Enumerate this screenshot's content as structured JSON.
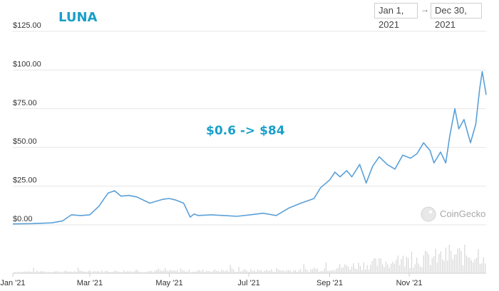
{
  "range": {
    "from": "Jan 1, 2021",
    "to": "Dec 30, 2021"
  },
  "watermark": "CoinGecko",
  "colors": {
    "line": "#5aa0d8",
    "title": "#1a9fc9",
    "grid": "#e6e6e6",
    "volume": "#d9d9d9"
  },
  "chart_data": {
    "type": "line",
    "title": "LUNA",
    "annotation": "$0.6 -> $84",
    "ylim": [
      0,
      125
    ],
    "y_ticks": [
      {
        "value": 0,
        "label": "$0.00"
      },
      {
        "value": 25,
        "label": "$25.00"
      },
      {
        "value": 50,
        "label": "$50.00"
      },
      {
        "value": 75,
        "label": "$75.00"
      },
      {
        "value": 100,
        "label": "$100.00"
      },
      {
        "value": 125,
        "label": "$125.00"
      }
    ],
    "xlim": [
      "2021-01-01",
      "2021-12-30"
    ],
    "x_ticks": [
      {
        "date": "2021-01-01",
        "label": "Jan '21"
      },
      {
        "date": "2021-03-01",
        "label": "Mar '21"
      },
      {
        "date": "2021-05-01",
        "label": "May '21"
      },
      {
        "date": "2021-07-01",
        "label": "Jul '21"
      },
      {
        "date": "2021-09-01",
        "label": "Sep '21"
      },
      {
        "date": "2021-11-01",
        "label": "Nov '21"
      }
    ],
    "grid": true,
    "x": [
      "2021-01-01",
      "2021-01-16",
      "2021-01-31",
      "2021-02-08",
      "2021-02-15",
      "2021-02-22",
      "2021-03-01",
      "2021-03-08",
      "2021-03-15",
      "2021-03-20",
      "2021-03-25",
      "2021-03-31",
      "2021-04-06",
      "2021-04-16",
      "2021-04-26",
      "2021-05-01",
      "2021-05-06",
      "2021-05-12",
      "2021-05-17",
      "2021-05-20",
      "2021-05-23",
      "2021-06-02",
      "2021-06-12",
      "2021-06-22",
      "2021-07-02",
      "2021-07-12",
      "2021-07-22",
      "2021-08-01",
      "2021-08-10",
      "2021-08-20",
      "2021-08-25",
      "2021-09-01",
      "2021-09-05",
      "2021-09-09",
      "2021-09-14",
      "2021-09-18",
      "2021-09-24",
      "2021-09-29",
      "2021-10-04",
      "2021-10-09",
      "2021-10-15",
      "2021-10-21",
      "2021-10-27",
      "2021-11-02",
      "2021-11-07",
      "2021-11-12",
      "2021-11-17",
      "2021-11-20",
      "2021-11-25",
      "2021-11-29",
      "2021-12-02",
      "2021-12-06",
      "2021-12-09",
      "2021-12-13",
      "2021-12-18",
      "2021-12-22",
      "2021-12-25",
      "2021-12-27",
      "2021-12-30"
    ],
    "series": [
      {
        "values": [
          0.6,
          0.8,
          1.3,
          2.5,
          6.5,
          6.0,
          6.5,
          12.0,
          20.5,
          22.0,
          18.5,
          19.0,
          18.0,
          14.0,
          16.5,
          17.0,
          16.0,
          14.0,
          5.0,
          7.0,
          6.0,
          6.5,
          6.0,
          5.5,
          6.5,
          7.5,
          6.0,
          11.0,
          14.0,
          17.0,
          24.0,
          29.0,
          34.0,
          31.0,
          35.0,
          31.0,
          39.0,
          27.0,
          38.0,
          44.0,
          39.0,
          36.0,
          45.0,
          43.0,
          46.0,
          53.0,
          48.0,
          40.0,
          47.0,
          40.0,
          57.0,
          75.0,
          62.0,
          68.0,
          53.0,
          65.0,
          88.0,
          99.0,
          84.0
        ]
      }
    ]
  }
}
